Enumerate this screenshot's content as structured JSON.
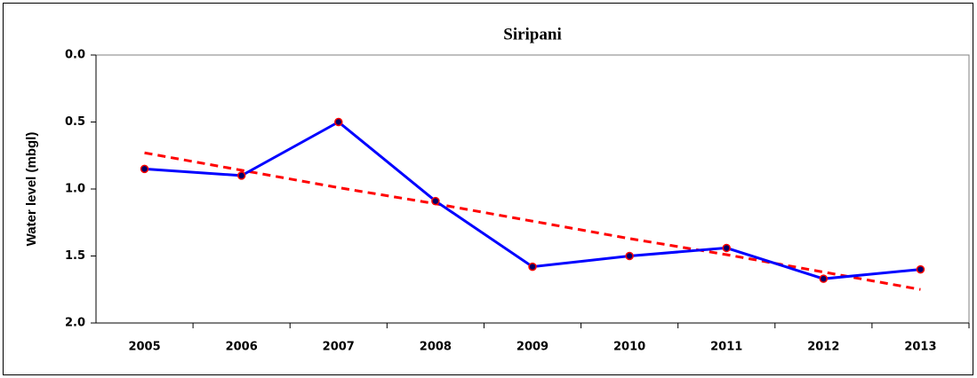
{
  "chart_data": {
    "type": "line",
    "title": "Siripani",
    "y_label": "Water level (mbgl)",
    "categories": [
      "2005",
      "2006",
      "2007",
      "2008",
      "2009",
      "2010",
      "2011",
      "2012",
      "2013"
    ],
    "series": [
      {
        "color": "#0000ff",
        "marker_color": "#000066",
        "marker_edge": "#ff0000",
        "values": [
          0.85,
          0.9,
          0.5,
          1.09,
          1.58,
          1.5,
          1.44,
          1.67,
          1.6
        ]
      },
      {
        "color": "#ff0000",
        "dashed": true,
        "values": [
          0.73,
          0.86,
          0.99,
          1.11,
          1.24,
          1.37,
          1.49,
          1.62,
          1.75
        ]
      }
    ],
    "ylim": [
      0,
      2
    ],
    "y_inverted": true,
    "yticks": [
      {
        "value": 0,
        "label": "0.0"
      },
      0.5,
      {
        "value": 1,
        "label": "1.0"
      },
      1.5,
      {
        "value": 2,
        "label": "2.0"
      }
    ],
    "grid": false
  }
}
